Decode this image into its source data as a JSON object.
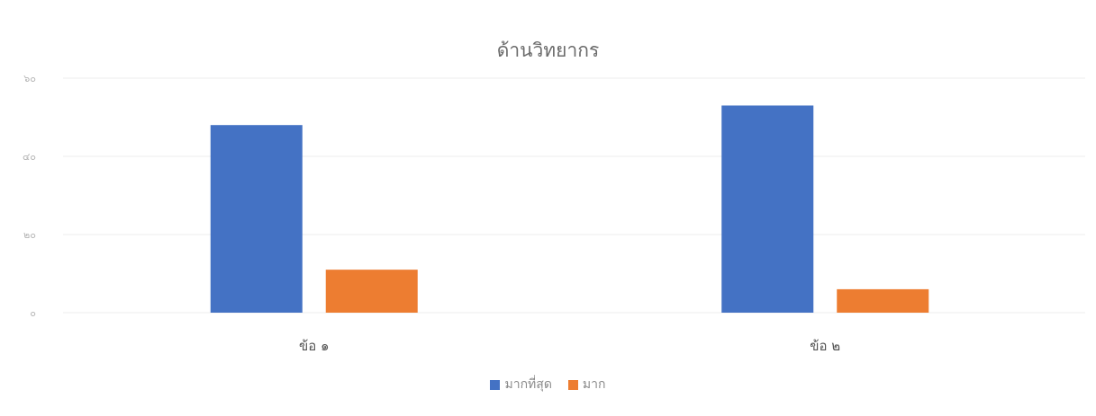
{
  "chart_data": {
    "type": "bar",
    "title": "ด้านวิทยากร",
    "categories": [
      "ข้อ ๑",
      "ข้อ ๒"
    ],
    "series": [
      {
        "name": "มากที่สุด",
        "color": "#4472c4",
        "values": [
          48,
          53
        ]
      },
      {
        "name": "มาก",
        "color": "#ed7d31",
        "values": [
          11,
          6
        ]
      }
    ],
    "ylim": [
      0,
      60
    ],
    "yticks": [
      "๐",
      "๒๐",
      "๔๐",
      "๖๐"
    ],
    "grid": true,
    "legend": "bottom"
  }
}
